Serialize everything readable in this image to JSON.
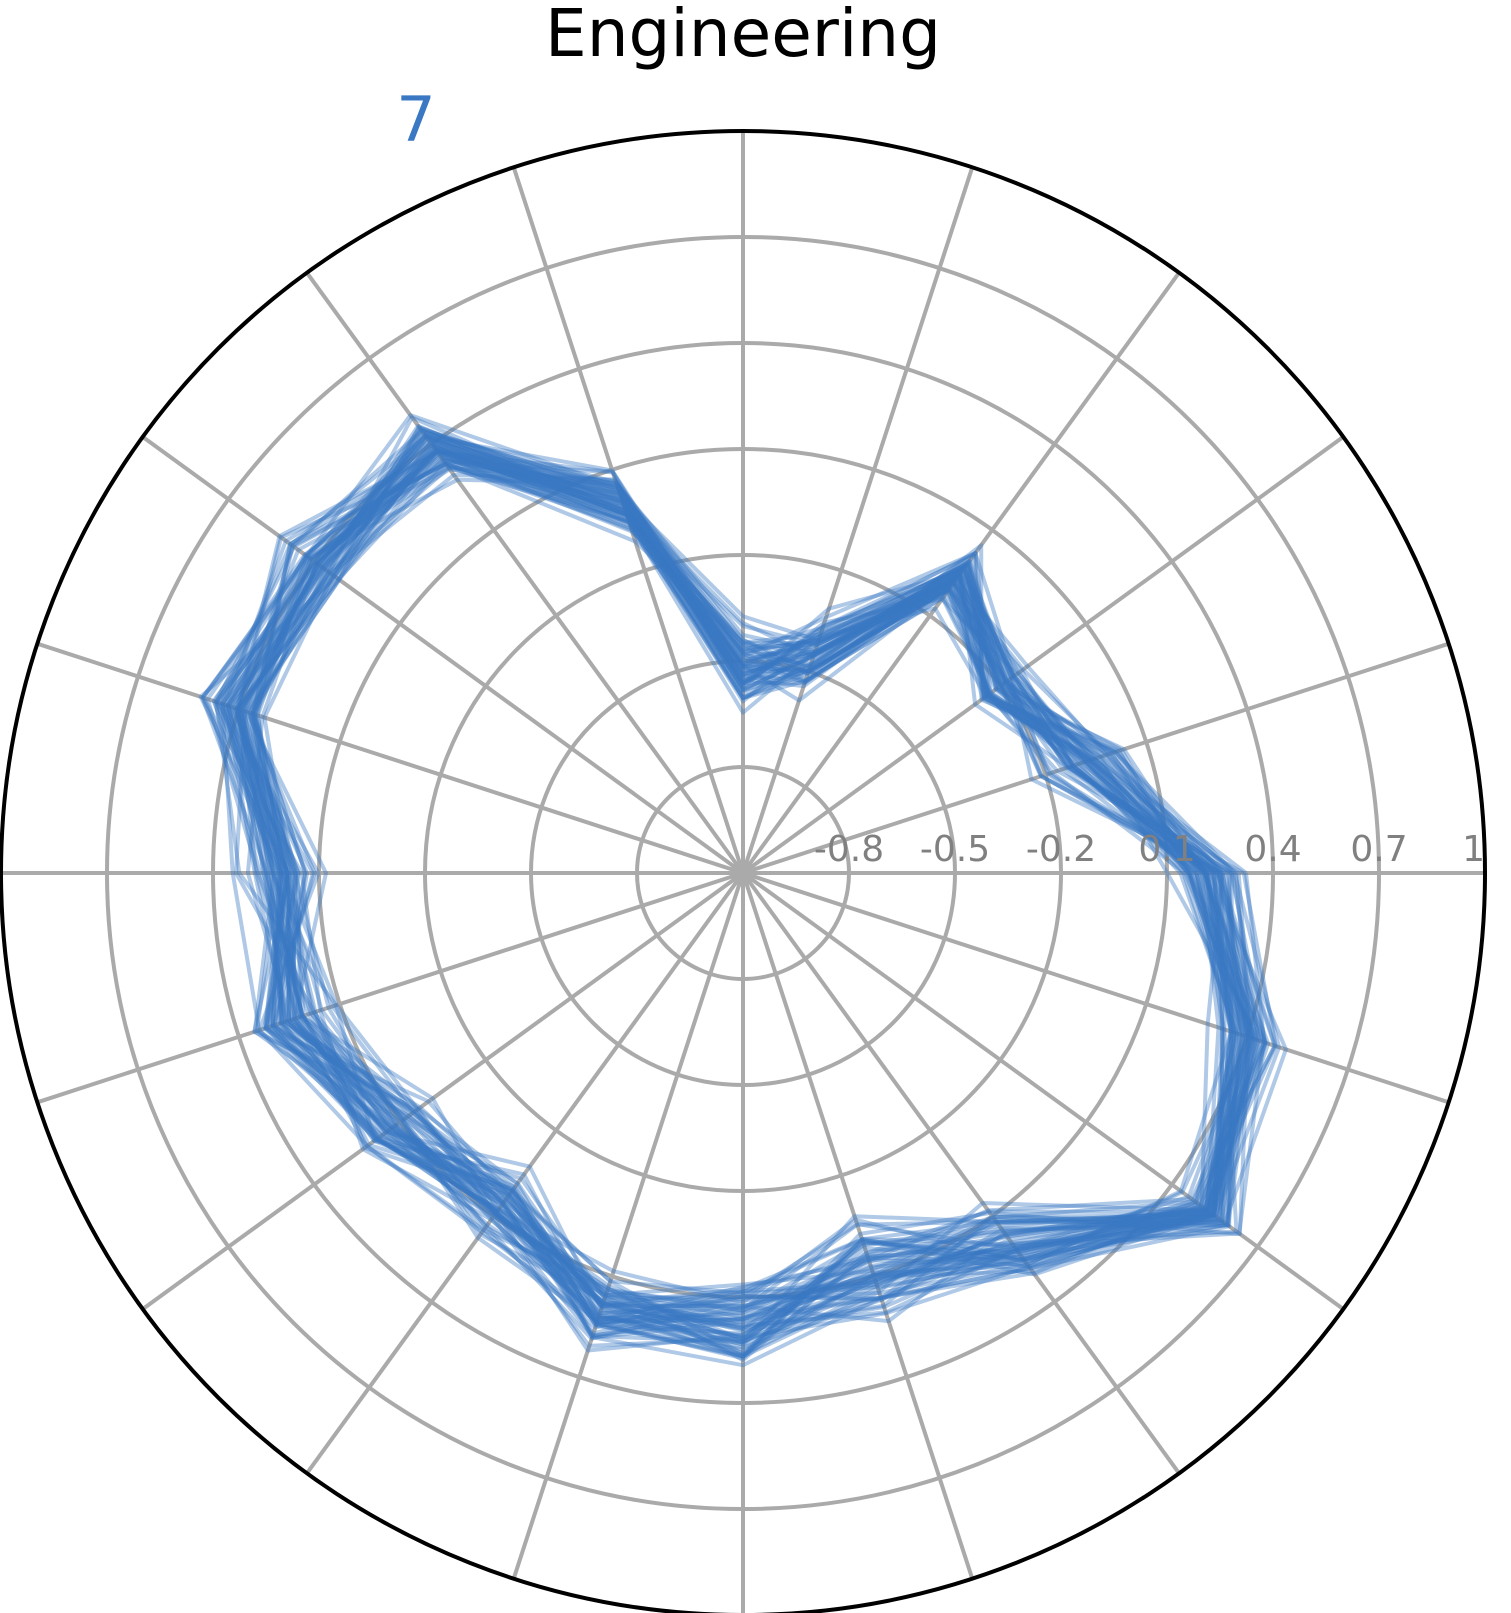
{
  "chart_data": {
    "type": "radar",
    "title": "Engineering",
    "count_label": "7",
    "n_axes": 20,
    "radial_range": [
      -1.1,
      1.0
    ],
    "radial_ticks": [
      "-0.8",
      "-0.5",
      "-0.2",
      "0.1",
      "0.4",
      "0.7",
      "1"
    ],
    "grid": true,
    "colors": {
      "series": "#3a78c3",
      "grid": "#aaaaaa",
      "frame": "#000000",
      "tick_text": "#808080"
    },
    "series_count": 60,
    "profile_center": [
      0.22,
      -0.1,
      -0.2,
      -0.07,
      -0.45,
      -0.53,
      0.0,
      0.39,
      0.4,
      0.41,
      0.21,
      0.24,
      0.11,
      0.06,
      0.2,
      0.18,
      0.09,
      0.2,
      0.55,
      0.41
    ],
    "profile_spread": [
      0.1,
      0.15,
      0.1,
      0.1,
      0.12,
      0.14,
      0.1,
      0.1,
      0.12,
      0.1,
      0.12,
      0.14,
      0.14,
      0.12,
      0.12,
      0.14,
      0.16,
      0.15,
      0.1,
      0.12
    ]
  }
}
